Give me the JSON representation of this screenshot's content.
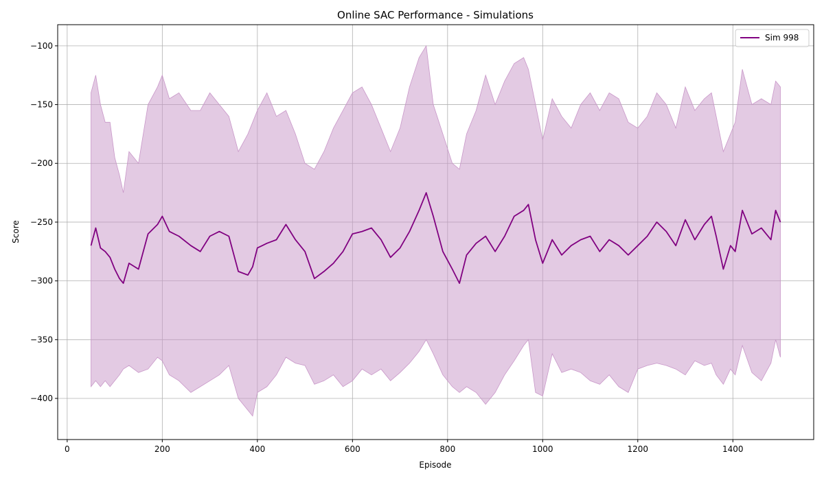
{
  "chart_data": {
    "type": "line",
    "title": "Online SAC Performance -  Simulations",
    "xlabel": "Episode",
    "ylabel": "Score",
    "xlim": [
      -20,
      1570
    ],
    "ylim": [
      -435,
      -82
    ],
    "x_ticks": [
      0,
      200,
      400,
      600,
      800,
      1000,
      1200,
      1400
    ],
    "y_ticks": [
      -100,
      -150,
      -200,
      -250,
      -300,
      -350,
      -400
    ],
    "grid": true,
    "legend_position": "top-right",
    "series": [
      {
        "name": "Sim 998",
        "color": "#800080",
        "band_color": "#c896c8",
        "x": [
          50,
          60,
          70,
          80,
          90,
          100,
          110,
          118,
          130,
          150,
          170,
          190,
          200,
          215,
          235,
          260,
          280,
          300,
          320,
          340,
          360,
          380,
          390,
          400,
          420,
          440,
          460,
          480,
          500,
          520,
          540,
          560,
          580,
          600,
          620,
          640,
          660,
          680,
          700,
          720,
          740,
          755,
          770,
          790,
          810,
          825,
          840,
          860,
          880,
          900,
          920,
          940,
          960,
          970,
          985,
          1000,
          1020,
          1040,
          1060,
          1080,
          1100,
          1120,
          1140,
          1160,
          1180,
          1200,
          1220,
          1240,
          1260,
          1280,
          1300,
          1320,
          1340,
          1355,
          1365,
          1380,
          1395,
          1405,
          1420,
          1440,
          1460,
          1480,
          1490,
          1500
        ],
        "mean": [
          -270,
          -255,
          -272,
          -275,
          -280,
          -290,
          -298,
          -302,
          -285,
          -290,
          -260,
          -252,
          -245,
          -258,
          -262,
          -270,
          -275,
          -262,
          -258,
          -262,
          -292,
          -295,
          -288,
          -272,
          -268,
          -265,
          -252,
          -265,
          -275,
          -298,
          -292,
          -285,
          -275,
          -260,
          -258,
          -255,
          -265,
          -280,
          -272,
          -258,
          -240,
          -225,
          -245,
          -275,
          -290,
          -302,
          -278,
          -268,
          -262,
          -275,
          -262,
          -245,
          -240,
          -235,
          -265,
          -285,
          -265,
          -278,
          -270,
          -265,
          -262,
          -275,
          -265,
          -270,
          -278,
          -270,
          -262,
          -250,
          -258,
          -270,
          -248,
          -265,
          -252,
          -245,
          -262,
          -290,
          -270,
          -275,
          -240,
          -260,
          -255,
          -265,
          -240,
          -250
        ],
        "upper": [
          -140,
          -125,
          -150,
          -165,
          -165,
          -195,
          -210,
          -225,
          -190,
          -200,
          -150,
          -135,
          -125,
          -145,
          -140,
          -155,
          -155,
          -140,
          -150,
          -160,
          -190,
          -175,
          -165,
          -155,
          -140,
          -160,
          -155,
          -175,
          -200,
          -205,
          -190,
          -170,
          -155,
          -140,
          -135,
          -150,
          -170,
          -190,
          -170,
          -135,
          -110,
          -100,
          -150,
          -175,
          -200,
          -205,
          -175,
          -155,
          -125,
          -150,
          -130,
          -115,
          -110,
          -120,
          -150,
          -180,
          -145,
          -160,
          -170,
          -150,
          -140,
          -155,
          -140,
          -145,
          -165,
          -170,
          -160,
          -140,
          -150,
          -170,
          -135,
          -155,
          -145,
          -140,
          -160,
          -190,
          -175,
          -165,
          -120,
          -150,
          -145,
          -150,
          -130,
          -135
        ],
        "lower": [
          -390,
          -385,
          -390,
          -385,
          -390,
          -385,
          -380,
          -375,
          -372,
          -378,
          -375,
          -365,
          -368,
          -380,
          -385,
          -395,
          -390,
          -385,
          -380,
          -372,
          -400,
          -410,
          -415,
          -395,
          -390,
          -380,
          -365,
          -370,
          -372,
          -388,
          -385,
          -380,
          -390,
          -385,
          -375,
          -380,
          -375,
          -385,
          -378,
          -370,
          -360,
          -350,
          -362,
          -380,
          -390,
          -395,
          -390,
          -395,
          -405,
          -395,
          -380,
          -368,
          -355,
          -350,
          -395,
          -398,
          -362,
          -378,
          -375,
          -378,
          -385,
          -388,
          -380,
          -390,
          -395,
          -375,
          -372,
          -370,
          -372,
          -375,
          -380,
          -368,
          -372,
          -370,
          -380,
          -388,
          -375,
          -380,
          -355,
          -378,
          -385,
          -370,
          -350,
          -365
        ]
      }
    ]
  }
}
